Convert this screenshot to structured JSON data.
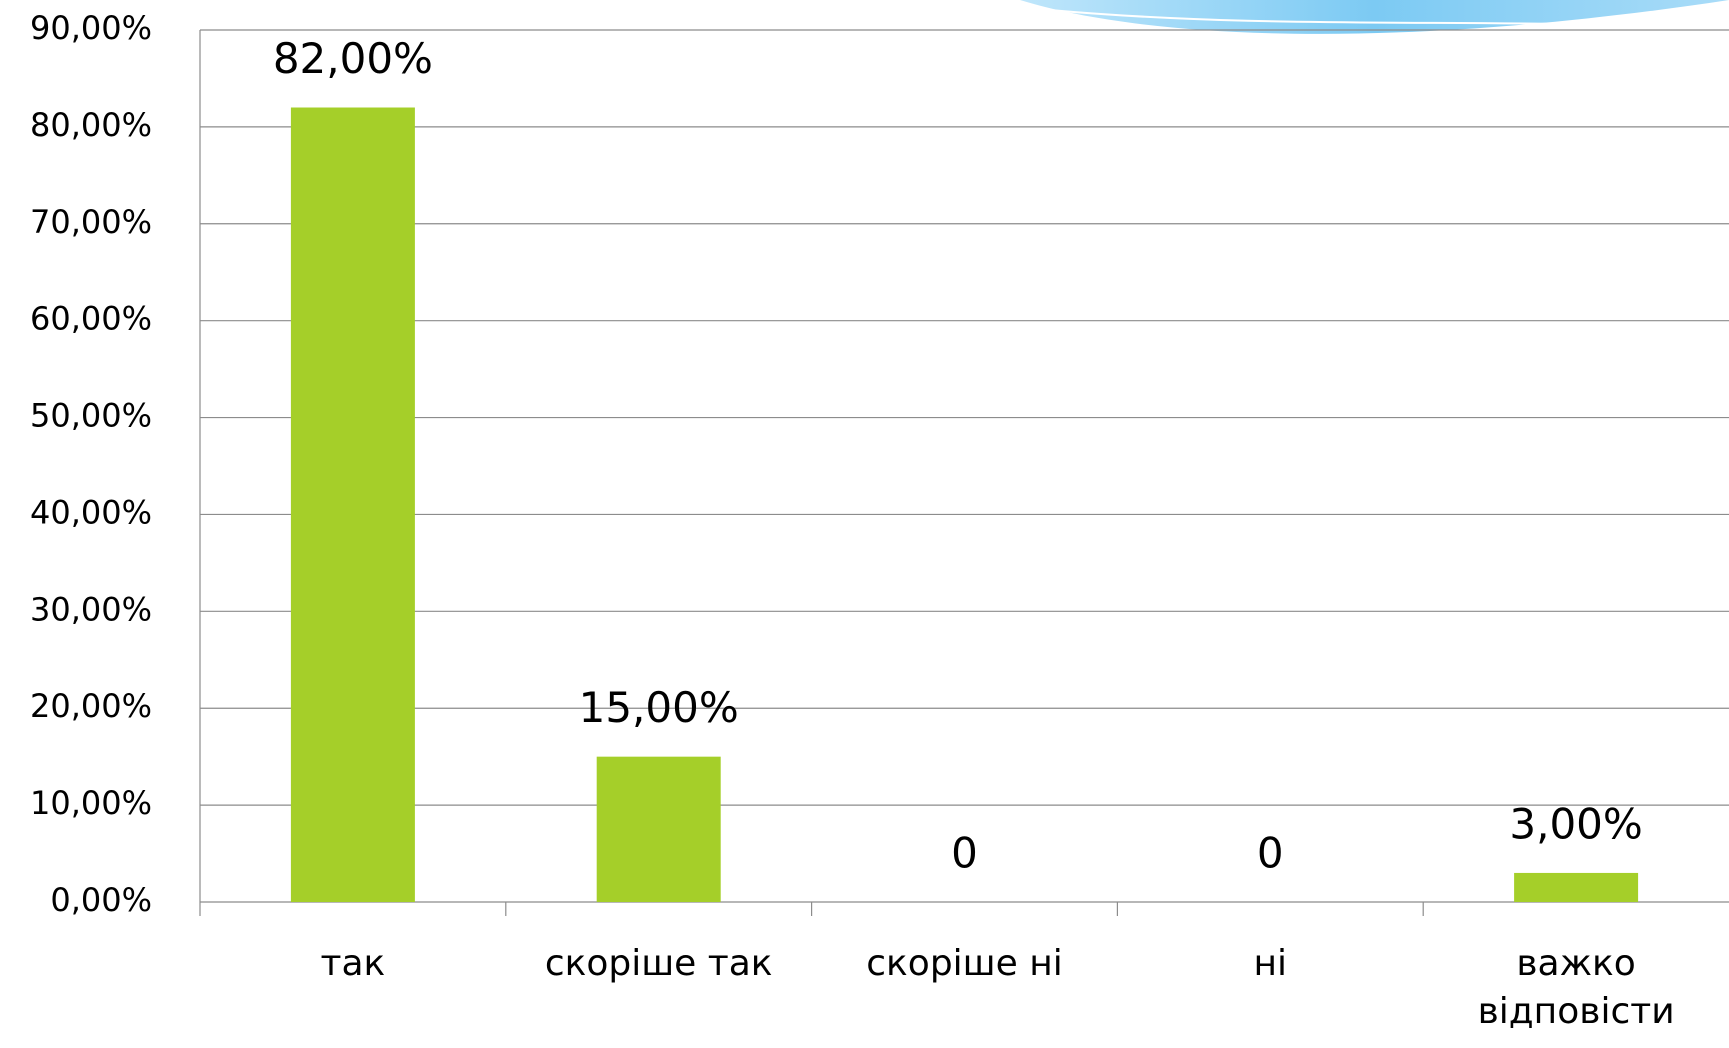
{
  "chart_data": {
    "type": "bar",
    "categories": [
      "так",
      "скоріше так",
      "скоріше ні",
      "ні",
      "важко відповісти"
    ],
    "values": [
      82,
      15,
      0,
      0,
      3
    ],
    "value_labels": [
      "82,00%",
      "15,00%",
      "0",
      "0",
      "3,00%"
    ],
    "color": "#a5cf29",
    "ylim": [
      0,
      90
    ],
    "yticks": [
      {
        "value": 0,
        "label": "0,00%"
      },
      {
        "value": 10,
        "label": "10,00%"
      },
      {
        "value": 20,
        "label": "20,00%"
      },
      {
        "value": 30,
        "label": "30,00%"
      },
      {
        "value": 40,
        "label": "40,00%"
      },
      {
        "value": 50,
        "label": "50,00%"
      },
      {
        "value": 60,
        "label": "60,00%"
      },
      {
        "value": 70,
        "label": "70,00%"
      },
      {
        "value": 80,
        "label": "80,00%"
      },
      {
        "value": 90,
        "label": "90,00%"
      }
    ],
    "grid": true
  }
}
